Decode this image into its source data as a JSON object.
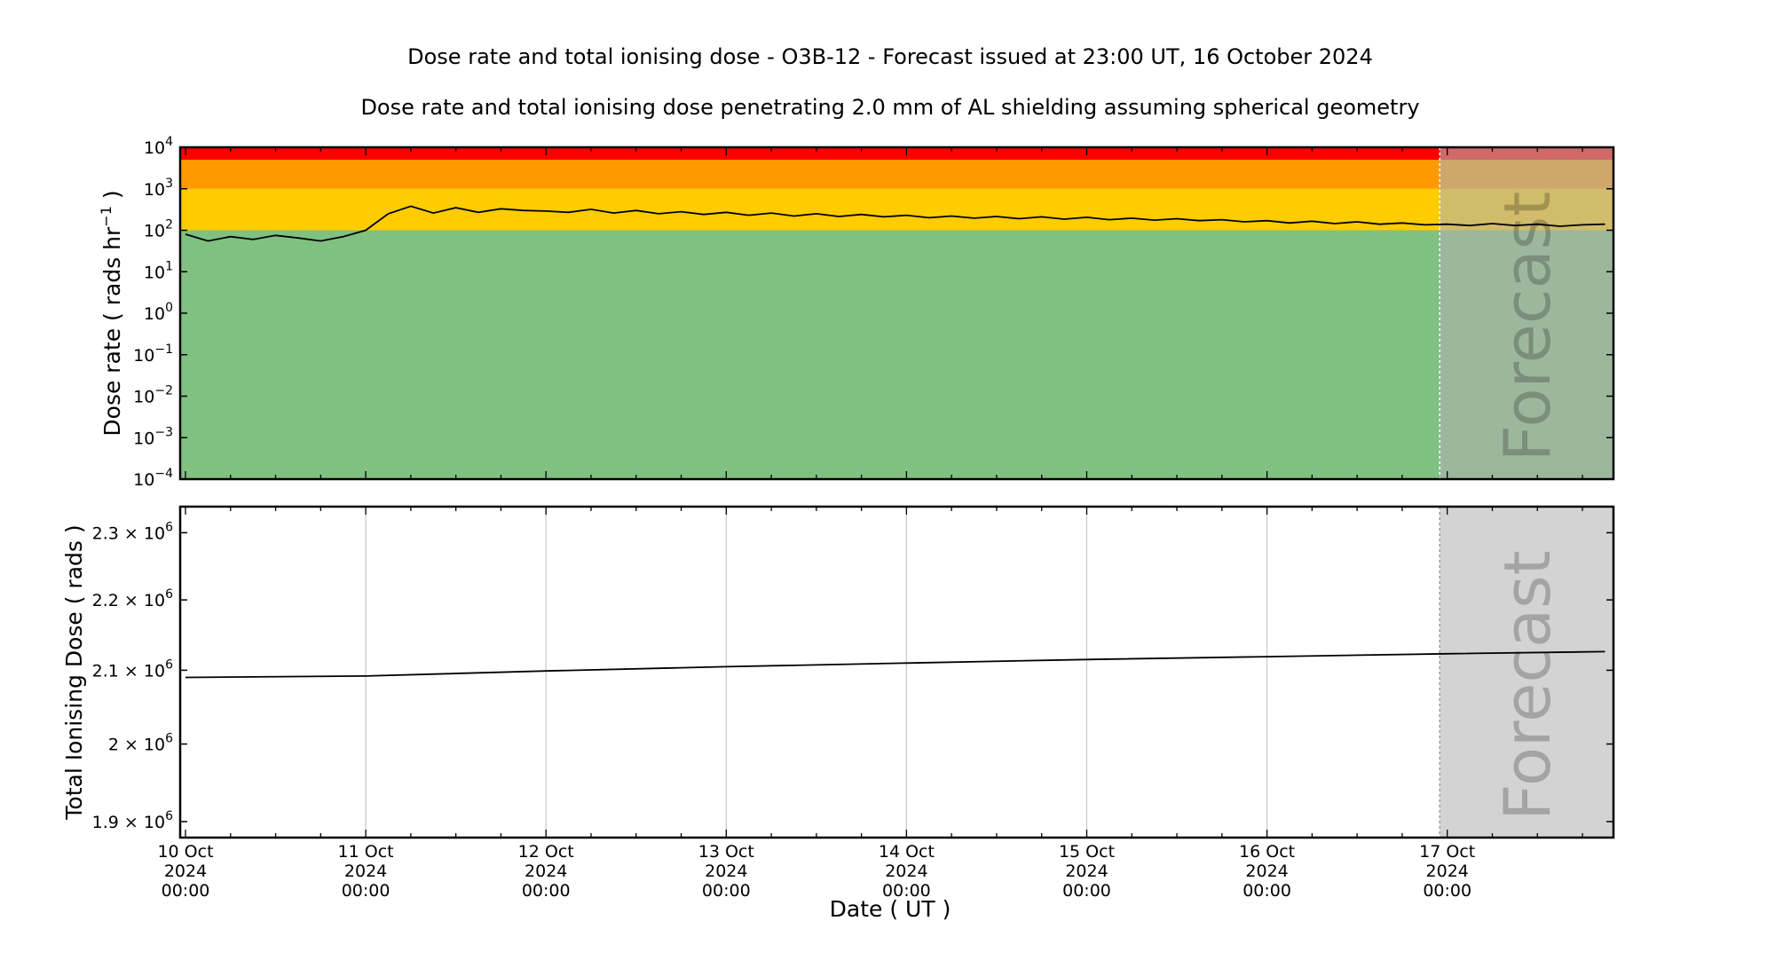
{
  "title": "Dose rate and total ionising dose - O3B-12 - Forecast issued at 23:00 UT, 16 October 2024",
  "subtitle": "Dose rate and total ionising dose penetrating 2.0 mm of AL shielding assuming spherical geometry",
  "forecast_label": "Forecast",
  "xlabel": "Date ( UT )",
  "x_ticks": [
    {
      "day": 0,
      "l1": "10 Oct",
      "l2": "2024",
      "l3": "00:00"
    },
    {
      "day": 1,
      "l1": "11 Oct",
      "l2": "2024",
      "l3": "00:00"
    },
    {
      "day": 2,
      "l1": "12 Oct",
      "l2": "2024",
      "l3": "00:00"
    },
    {
      "day": 3,
      "l1": "13 Oct",
      "l2": "2024",
      "l3": "00:00"
    },
    {
      "day": 4,
      "l1": "14 Oct",
      "l2": "2024",
      "l3": "00:00"
    },
    {
      "day": 5,
      "l1": "15 Oct",
      "l2": "2024",
      "l3": "00:00"
    },
    {
      "day": 6,
      "l1": "16 Oct",
      "l2": "2024",
      "l3": "00:00"
    },
    {
      "day": 7,
      "l1": "17 Oct",
      "l2": "2024",
      "l3": "00:00"
    }
  ],
  "colors": {
    "green": "#80c080",
    "yellow": "#ffcc00",
    "orange": "#ff9900",
    "red": "#ff0000",
    "forecast_shade": "#b0b0b0",
    "line": "#000000",
    "grid": "#c8c8c8"
  },
  "chart_data": [
    {
      "type": "line",
      "ylabel_main": "Dose rate ( rads hr",
      "ylabel_sup": "−1",
      "ylabel_end": " )",
      "y_scale": "log",
      "ylim": [
        0.0001,
        10000
      ],
      "y_ticks": [
        {
          "value": 0.0001,
          "base": "10",
          "exp": "−4"
        },
        {
          "value": 0.001,
          "base": "10",
          "exp": "−3"
        },
        {
          "value": 0.01,
          "base": "10",
          "exp": "−2"
        },
        {
          "value": 0.1,
          "base": "10",
          "exp": "−1"
        },
        {
          "value": 1,
          "base": "10",
          "exp": "0"
        },
        {
          "value": 10,
          "base": "10",
          "exp": "1"
        },
        {
          "value": 100,
          "base": "10",
          "exp": "2"
        },
        {
          "value": 1000,
          "base": "10",
          "exp": "3"
        },
        {
          "value": 10000,
          "base": "10",
          "exp": "4"
        }
      ],
      "bands": [
        {
          "from": 0.0001,
          "to": 100,
          "color": "green"
        },
        {
          "from": 100,
          "to": 1000,
          "color": "yellow"
        },
        {
          "from": 1000,
          "to": 5000,
          "color": "orange"
        },
        {
          "from": 5000,
          "to": 10000,
          "color": "red"
        }
      ],
      "forecast_start": "2024-10-16 23:00",
      "x": [
        "2024-10-10 00:00",
        "2024-10-10 03:00",
        "2024-10-10 06:00",
        "2024-10-10 09:00",
        "2024-10-10 12:00",
        "2024-10-10 15:00",
        "2024-10-10 18:00",
        "2024-10-10 21:00",
        "2024-10-11 00:00",
        "2024-10-11 03:00",
        "2024-10-11 06:00",
        "2024-10-11 09:00",
        "2024-10-11 12:00",
        "2024-10-11 15:00",
        "2024-10-11 18:00",
        "2024-10-11 21:00",
        "2024-10-12 00:00",
        "2024-10-12 03:00",
        "2024-10-12 06:00",
        "2024-10-12 09:00",
        "2024-10-12 12:00",
        "2024-10-12 15:00",
        "2024-10-12 18:00",
        "2024-10-12 21:00",
        "2024-10-13 00:00",
        "2024-10-13 03:00",
        "2024-10-13 06:00",
        "2024-10-13 09:00",
        "2024-10-13 12:00",
        "2024-10-13 15:00",
        "2024-10-13 18:00",
        "2024-10-13 21:00",
        "2024-10-14 00:00",
        "2024-10-14 03:00",
        "2024-10-14 06:00",
        "2024-10-14 09:00",
        "2024-10-14 12:00",
        "2024-10-14 15:00",
        "2024-10-14 18:00",
        "2024-10-14 21:00",
        "2024-10-15 00:00",
        "2024-10-15 03:00",
        "2024-10-15 06:00",
        "2024-10-15 09:00",
        "2024-10-15 12:00",
        "2024-10-15 15:00",
        "2024-10-15 18:00",
        "2024-10-15 21:00",
        "2024-10-16 00:00",
        "2024-10-16 03:00",
        "2024-10-16 06:00",
        "2024-10-16 09:00",
        "2024-10-16 12:00",
        "2024-10-16 15:00",
        "2024-10-16 18:00",
        "2024-10-16 21:00",
        "2024-10-17 00:00",
        "2024-10-17 03:00",
        "2024-10-17 06:00",
        "2024-10-17 09:00",
        "2024-10-17 12:00",
        "2024-10-17 15:00",
        "2024-10-17 18:00",
        "2024-10-17 21:00"
      ],
      "y": [
        80,
        55,
        70,
        60,
        75,
        65,
        55,
        70,
        100,
        250,
        380,
        260,
        350,
        270,
        330,
        300,
        290,
        270,
        320,
        260,
        300,
        250,
        280,
        240,
        270,
        230,
        260,
        220,
        250,
        215,
        240,
        210,
        230,
        200,
        220,
        195,
        215,
        190,
        210,
        185,
        205,
        180,
        195,
        175,
        190,
        170,
        180,
        160,
        170,
        150,
        165,
        145,
        160,
        140,
        150,
        135,
        140,
        130,
        145,
        130,
        140,
        125,
        135,
        140
      ]
    },
    {
      "type": "line",
      "ylabel": "Total Ionising Dose ( rads )",
      "y_scale": "log",
      "ylim": [
        1880000,
        2340000
      ],
      "y_ticks": [
        {
          "value": 1900000,
          "mant": "1.9 × 10",
          "exp": "6"
        },
        {
          "value": 2000000,
          "mant": "2 × 10",
          "exp": "6"
        },
        {
          "value": 2100000,
          "mant": "2.1 × 10",
          "exp": "6"
        },
        {
          "value": 2200000,
          "mant": "2.2 × 10",
          "exp": "6"
        },
        {
          "value": 2300000,
          "mant": "2.3 × 10",
          "exp": "6"
        }
      ],
      "grid": true,
      "forecast_start": "2024-10-16 23:00",
      "x": [
        "2024-10-10 00:00",
        "2024-10-11 00:00",
        "2024-10-12 00:00",
        "2024-10-13 00:00",
        "2024-10-14 00:00",
        "2024-10-15 00:00",
        "2024-10-16 00:00",
        "2024-10-17 00:00",
        "2024-10-17 21:00"
      ],
      "y": [
        2090000,
        2092000,
        2099000,
        2105000,
        2110000,
        2115000,
        2119000,
        2123000,
        2126000
      ]
    }
  ]
}
